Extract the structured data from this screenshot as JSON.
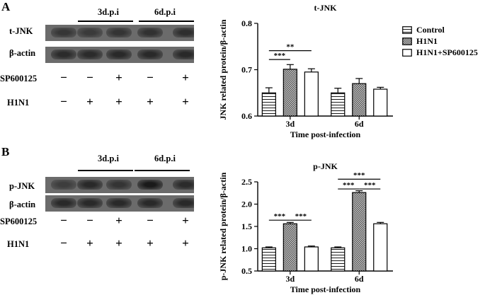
{
  "panels": [
    {
      "letter": "A",
      "timepoints": [
        "3d.p.i",
        "6d.p.i"
      ],
      "blots": [
        {
          "label": "t-JNK",
          "intensity": [
            0.55,
            0.5,
            0.58,
            0.62,
            0.65
          ]
        },
        {
          "label": "β-actin",
          "intensity": [
            0.7,
            0.7,
            0.72,
            0.72,
            0.72
          ]
        }
      ],
      "treatments": [
        {
          "label": "SP600125",
          "signs": [
            "−",
            "−",
            "+",
            "−",
            "+"
          ]
        },
        {
          "label": "H1N1",
          "signs": [
            "−",
            "+",
            "+",
            "+",
            "+"
          ]
        }
      ]
    },
    {
      "letter": "B",
      "timepoints": [
        "3d.p.i",
        "6d.p.i"
      ],
      "blots": [
        {
          "label": "p-JNK",
          "intensity": [
            0.45,
            0.72,
            0.58,
            0.92,
            0.7
          ]
        },
        {
          "label": "β-actin",
          "intensity": [
            0.72,
            0.72,
            0.72,
            0.72,
            0.72
          ]
        }
      ],
      "treatments": [
        {
          "label": "SP600125",
          "signs": [
            "−",
            "−",
            "+",
            "−",
            "+"
          ]
        },
        {
          "label": "H1N1",
          "signs": [
            "−",
            "+",
            "+",
            "+",
            "+"
          ]
        }
      ]
    }
  ],
  "chart_data": [
    {
      "type": "bar",
      "title": "t-JNK",
      "xlabel": "Time post-infection",
      "ylabel": "JNK related protein/β-actin",
      "categories": [
        "3d",
        "6d"
      ],
      "ylim": [
        0.6,
        0.8
      ],
      "yticks": [
        "0.6",
        "0.7",
        "0.8"
      ],
      "series": [
        {
          "name": "Control",
          "values": [
            0.65,
            0.65
          ],
          "errors": [
            0.011,
            0.01
          ]
        },
        {
          "name": "H1N1",
          "values": [
            0.701,
            0.67
          ],
          "errors": [
            0.01,
            0.011
          ]
        },
        {
          "name": "H1N1+SP600125",
          "values": [
            0.695,
            0.658
          ],
          "errors": [
            0.007,
            0.004
          ]
        }
      ],
      "annotations": [
        {
          "text": "**",
          "from_series": 0,
          "to_series": 2,
          "category": 0,
          "at": 0.741
        },
        {
          "text": "***",
          "from_series": 0,
          "to_series": 1,
          "category": 0,
          "at": 0.722
        }
      ]
    },
    {
      "type": "bar",
      "title": "p-JNK",
      "xlabel": "Time post-infection",
      "ylabel": "p-JNK related protein/β-actin",
      "categories": [
        "3d",
        "6d"
      ],
      "ylim": [
        0.5,
        2.5
      ],
      "yticks": [
        "0.5",
        "1.0",
        "1.5",
        "2.0",
        "2.5"
      ],
      "series": [
        {
          "name": "Control",
          "values": [
            1.02,
            1.02
          ],
          "errors": [
            0.02,
            0.02
          ]
        },
        {
          "name": "H1N1",
          "values": [
            1.56,
            2.26
          ],
          "errors": [
            0.03,
            0.04
          ]
        },
        {
          "name": "H1N1+SP600125",
          "values": [
            1.04,
            1.56
          ],
          "errors": [
            0.02,
            0.03
          ]
        }
      ],
      "annotations": [
        {
          "text": "***",
          "from_series": 0,
          "to_series": 1,
          "category": 0,
          "at": 1.64
        },
        {
          "text": "***",
          "from_series": 1,
          "to_series": 2,
          "category": 0,
          "at": 1.64
        },
        {
          "text": "***",
          "from_series": 0,
          "to_series": 2,
          "category": 1,
          "at": 2.56
        },
        {
          "text": "***",
          "from_series": 0,
          "to_series": 1,
          "category": 1,
          "at": 2.34
        },
        {
          "text": "***",
          "from_series": 1,
          "to_series": 2,
          "category": 1,
          "at": 2.34
        }
      ]
    }
  ],
  "colors": {
    "bar_edge": "#000000",
    "bar_fill_control": "#ffffff",
    "bar_fill_h1n1": "#9a9a9a",
    "bar_fill_sp": "#ffffff"
  }
}
